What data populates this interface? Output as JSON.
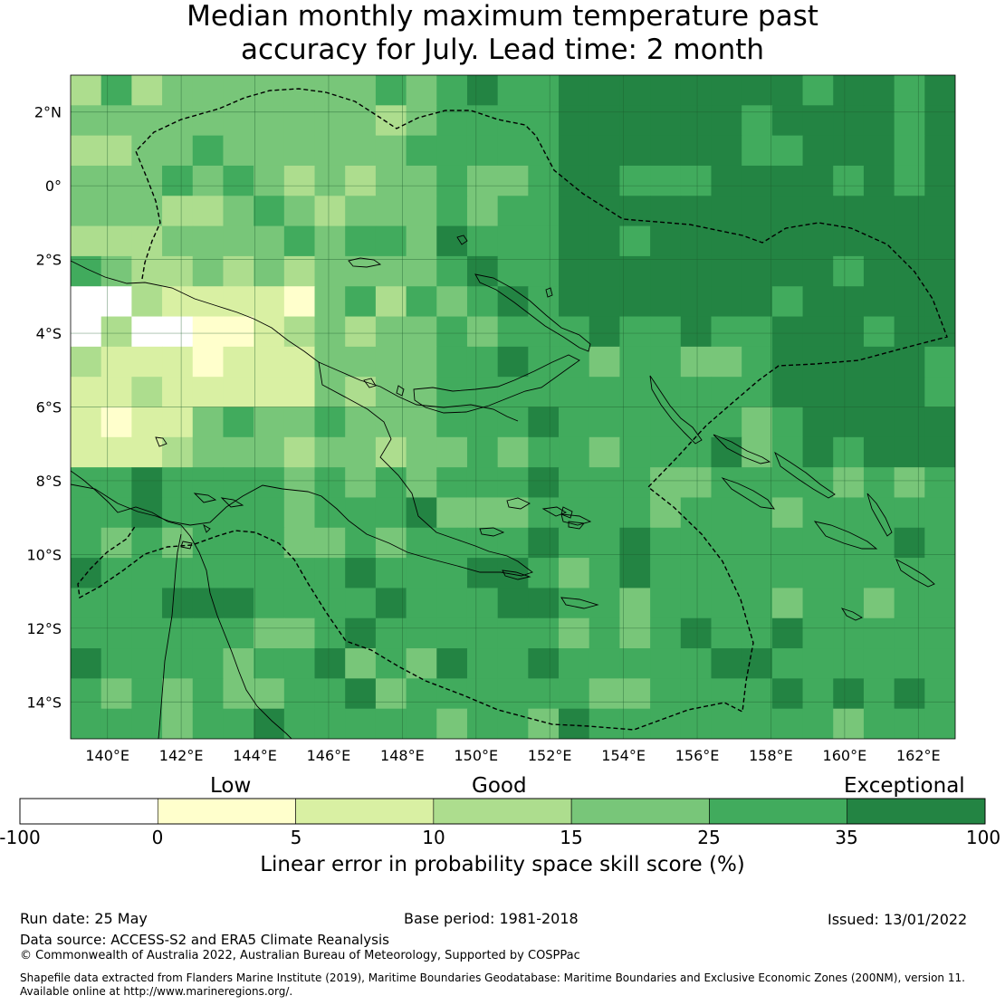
{
  "title": {
    "line1": "Median monthly maximum temperature past",
    "line2": "accuracy for July. Lead time: 2 month"
  },
  "map": {
    "lon_min": 139,
    "lon_max": 163,
    "lat_min": -15,
    "lat_max": 3,
    "lon_ticks": [
      "140°E",
      "142°E",
      "144°E",
      "146°E",
      "148°E",
      "150°E",
      "152°E",
      "154°E",
      "156°E",
      "158°E",
      "160°E",
      "162°E"
    ],
    "lat_ticks": [
      "2°N",
      "0°",
      "2°S",
      "4°S",
      "6°S",
      "8°S",
      "10°S",
      "12°S",
      "14°S"
    ],
    "grid": true,
    "boundary_style": "dashed",
    "colors": {
      "land": "#000000",
      "boundary": "#000000"
    }
  },
  "legend": {
    "categories": [
      "Low",
      "Good",
      "Exceptional"
    ],
    "ticks": [
      "-100",
      "0",
      "5",
      "10",
      "15",
      "25",
      "35",
      "100"
    ],
    "colors": [
      "#ffffff",
      "#ffffcc",
      "#d9f0a3",
      "#addd8e",
      "#78c679",
      "#41ab5d",
      "#238443"
    ],
    "title": "Linear error in probability space skill score (%)"
  },
  "footer": {
    "run_date": "Run date: 25 May",
    "base_period": "Base period: 1981-2018",
    "issued": "Issued: 13/01/2022",
    "data_source": "Data source: ACCESS-S2 and ERA5 Climate Reanalysis",
    "copyright": "© Commonwealth of Australia 2022, Australian Bureau of Meteorology, Supported by COSPPac",
    "shapefile_line1": "Shapefile data extracted from Flanders Marine Institute (2019), Maritime Boundaries Geodatabase: Maritime Boundaries and Exclusive Economic Zones (200NM), version 11.",
    "shapefile_line2": "Available online at http://www.marineregions.org/."
  }
}
